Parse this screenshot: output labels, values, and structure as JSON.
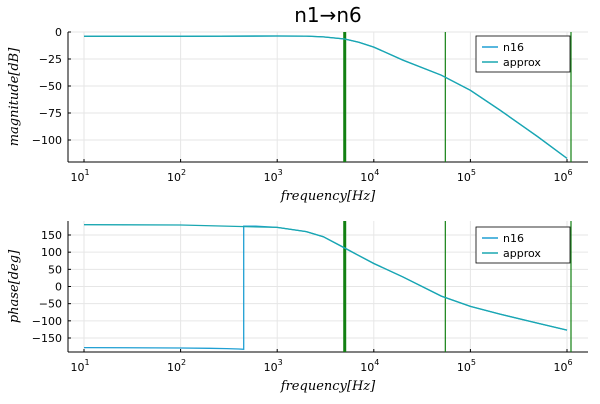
{
  "chart_data": [
    {
      "type": "line",
      "title": "n1→n6",
      "xlabel": "frequency[Hz]",
      "ylabel": "magnitude[dB]",
      "xscale": "log",
      "xlim": [
        10,
        1000000
      ],
      "ylim": [
        -120,
        0
      ],
      "xticks": [
        10,
        100,
        1000,
        10000,
        100000,
        1000000
      ],
      "xtick_labels": [
        {
          "base": "10",
          "exp": "1"
        },
        {
          "base": "10",
          "exp": "2"
        },
        {
          "base": "10",
          "exp": "3"
        },
        {
          "base": "10",
          "exp": "4"
        },
        {
          "base": "10",
          "exp": "5"
        },
        {
          "base": "10",
          "exp": "6"
        }
      ],
      "yticks": [
        0,
        -25,
        -50,
        -75,
        -100
      ],
      "ytick_labels": [
        "0",
        "−25",
        "−50",
        "−75",
        "−100"
      ],
      "grid": true,
      "legend_position": "top-right",
      "series": [
        {
          "name": "n16",
          "color": "#1f9fd3",
          "x": [
            10,
            100,
            1000,
            2000,
            3000,
            5000,
            7000,
            10000,
            20000,
            50000,
            100000,
            200000,
            500000,
            1000000
          ],
          "y": [
            -4,
            -4,
            -3.7,
            -3.8,
            -4.5,
            -6.5,
            -9.5,
            -14,
            -26,
            -40,
            -54,
            -72,
            -97,
            -117
          ]
        },
        {
          "name": "approx",
          "color": "#1aa7b1",
          "x": [
            10,
            100,
            1000,
            2000,
            3000,
            5000,
            7000,
            10000,
            20000,
            50000,
            100000,
            200000,
            500000,
            1000000
          ],
          "y": [
            -4,
            -4,
            -3.7,
            -3.8,
            -4.5,
            -6.5,
            -9.5,
            -14,
            -26,
            -40,
            -54,
            -72,
            -97,
            -117
          ]
        }
      ],
      "vlines": [
        {
          "x": 5000,
          "color": "#128012",
          "width": "thick"
        },
        {
          "x": 55000,
          "color": "#128012",
          "width": "thin"
        },
        {
          "x": 1100000,
          "color": "#128012",
          "width": "thin"
        }
      ]
    },
    {
      "type": "line",
      "title": "",
      "xlabel": "frequency[Hz]",
      "ylabel": "phase[deg]",
      "xscale": "log",
      "xlim": [
        10,
        1000000
      ],
      "ylim": [
        -180,
        180
      ],
      "xticks": [
        10,
        100,
        1000,
        10000,
        100000,
        1000000
      ],
      "xtick_labels": [
        {
          "base": "10",
          "exp": "1"
        },
        {
          "base": "10",
          "exp": "2"
        },
        {
          "base": "10",
          "exp": "3"
        },
        {
          "base": "10",
          "exp": "4"
        },
        {
          "base": "10",
          "exp": "5"
        },
        {
          "base": "10",
          "exp": "6"
        }
      ],
      "yticks": [
        150,
        100,
        50,
        0,
        -50,
        -100,
        -150
      ],
      "ytick_labels": [
        "150",
        "100",
        "50",
        "0",
        "−50",
        "−100",
        "−150"
      ],
      "grid": true,
      "legend_position": "top-right",
      "series": [
        {
          "name": "n16",
          "color": "#1f9fd3",
          "x": [
            10,
            100,
            200,
            300,
            400,
            450,
            450,
            600,
            1000,
            2000,
            3000,
            5000,
            7000,
            10000,
            20000,
            50000,
            100000,
            200000,
            500000,
            1000000
          ],
          "y": [
            -178,
            -179,
            -180,
            -181,
            -182,
            -183,
            176,
            176,
            172,
            160,
            145,
            112,
            90,
            67,
            28,
            -28,
            -58,
            -80,
            -107,
            -127
          ]
        },
        {
          "name": "approx",
          "color": "#1aa7b1",
          "x": [
            10,
            100,
            1000,
            2000,
            3000,
            5000,
            7000,
            10000,
            20000,
            50000,
            100000,
            200000,
            500000,
            1000000
          ],
          "y": [
            180,
            179,
            172,
            160,
            145,
            112,
            90,
            67,
            28,
            -28,
            -58,
            -80,
            -107,
            -127
          ]
        }
      ],
      "vlines": [
        {
          "x": 5000,
          "color": "#128012",
          "width": "thick"
        },
        {
          "x": 55000,
          "color": "#128012",
          "width": "thin"
        },
        {
          "x": 1100000,
          "color": "#128012",
          "width": "thin"
        }
      ]
    }
  ]
}
